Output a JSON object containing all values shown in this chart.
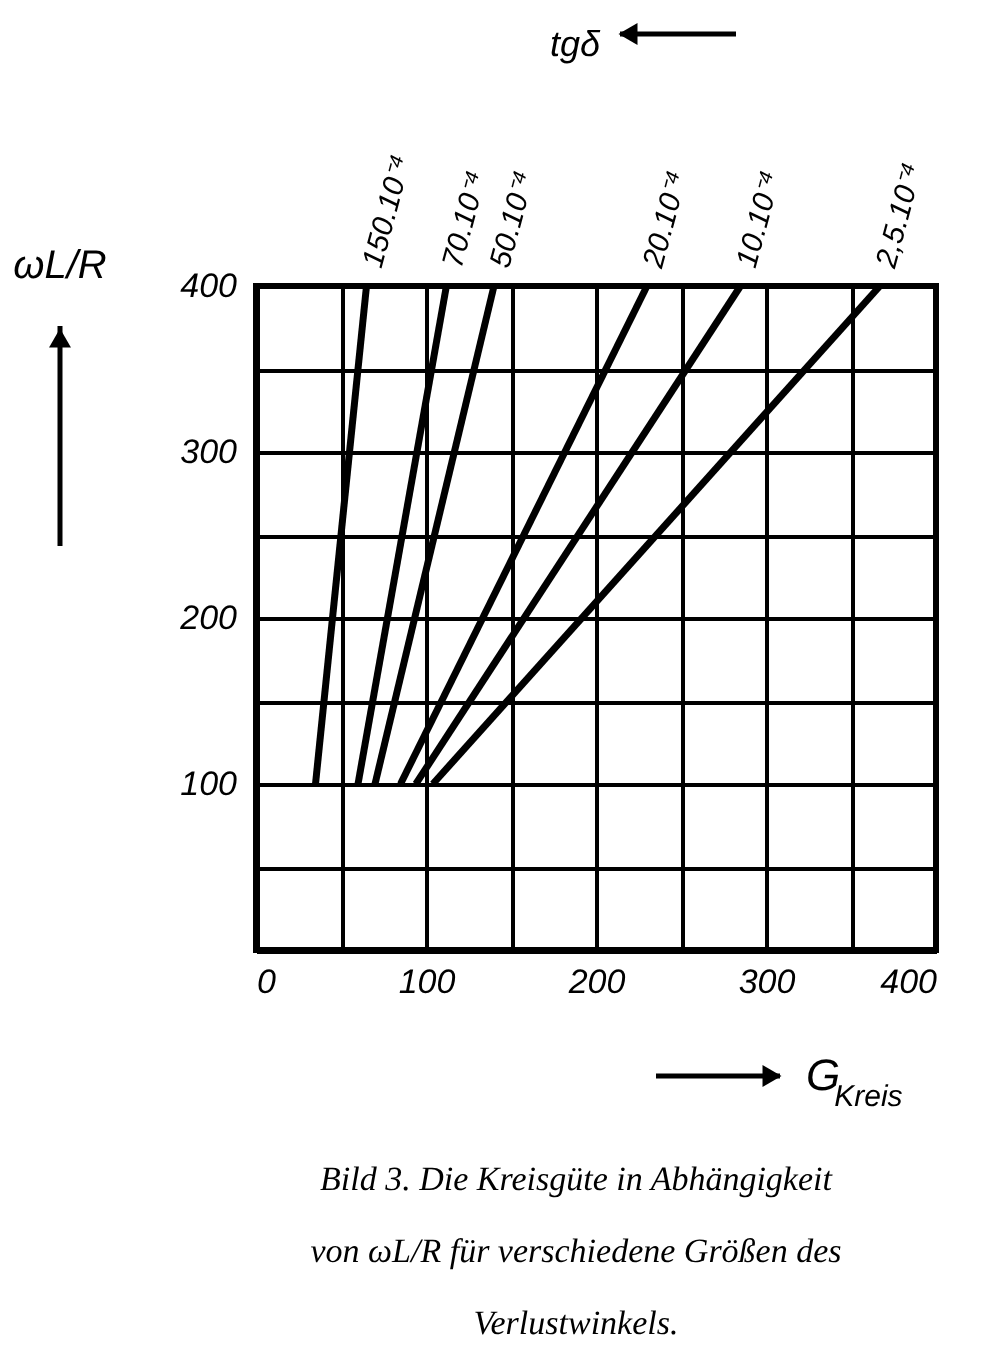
{
  "chart_data": {
    "type": "line",
    "xlabel": "G$_{Kreis}$",
    "ylabel": "ωL/R",
    "legend_title": "tgδ",
    "annotations": [
      "Bild 3. Die Kreisgüte in Abhängigkeit von ωL/R für verschiedene Größen des Verlustwinkels."
    ],
    "xlim": [
      0,
      400
    ],
    "ylim": [
      0,
      400
    ],
    "xticks": [
      0,
      {
        "value": 50,
        "label": null
      },
      100,
      {
        "value": 150,
        "label": null
      },
      200,
      {
        "value": 250,
        "label": null
      },
      300,
      {
        "value": 350,
        "label": null
      },
      400
    ],
    "yticks": [
      {
        "value": 0,
        "label": null
      },
      {
        "value": 50,
        "label": null
      },
      100,
      {
        "value": 150,
        "label": null
      },
      200,
      {
        "value": 250,
        "label": null
      },
      300,
      {
        "value": 350,
        "label": null
      },
      400
    ],
    "grid": true,
    "line_style": "solid",
    "marker": "none",
    "series": [
      {
        "name": "150.10⁻⁴",
        "color": "#000000",
        "x": [
          35,
          65
        ],
        "values": [
          100,
          400
        ]
      },
      {
        "name": "70.10⁻⁴",
        "color": "#000000",
        "x": [
          60,
          112
        ],
        "values": [
          100,
          400
        ]
      },
      {
        "name": "50.10⁻⁴",
        "color": "#000000",
        "x": [
          70,
          140
        ],
        "values": [
          100,
          400
        ]
      },
      {
        "name": "20.10⁻⁴",
        "color": "#000000",
        "x": [
          85,
          230
        ],
        "values": [
          100,
          400
        ]
      },
      {
        "name": "10.10⁻⁴",
        "color": "#000000",
        "x": [
          94,
          285
        ],
        "values": [
          100,
          400
        ]
      },
      {
        "name": "2,5.10⁻⁴",
        "color": "#000000",
        "x": [
          104,
          367
        ],
        "values": [
          100,
          400
        ]
      }
    ]
  }
}
